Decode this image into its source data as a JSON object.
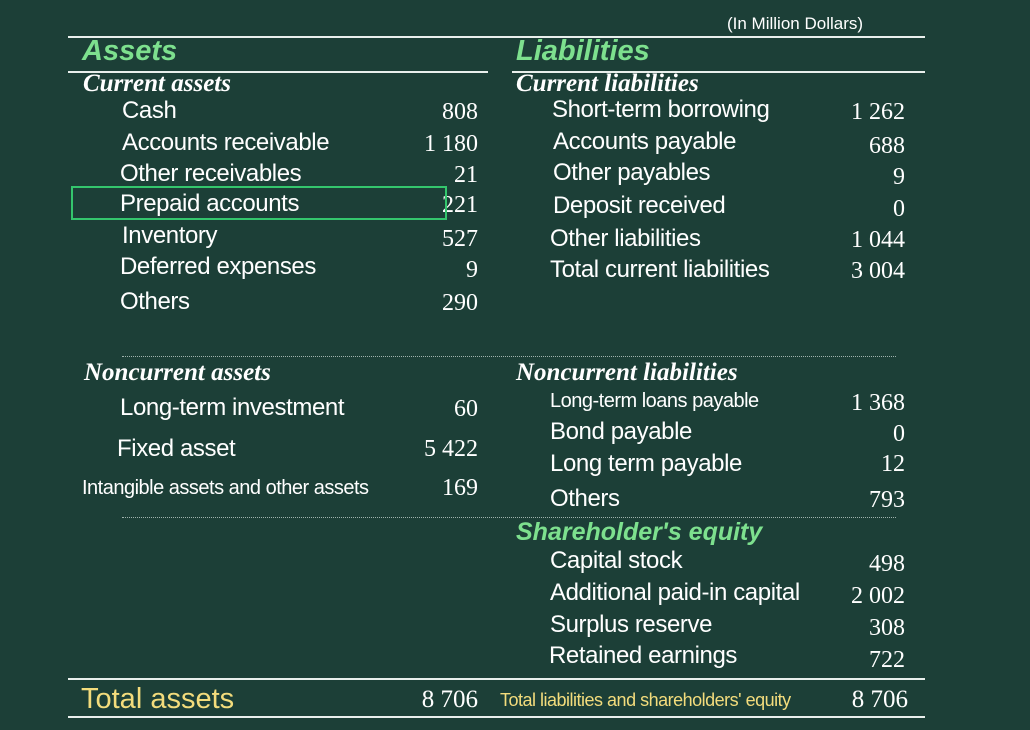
{
  "note": "(In Million Dollars)",
  "assets": {
    "title": "Assets",
    "current": {
      "title": "Current assets",
      "items": [
        {
          "label": "Cash",
          "value": "808"
        },
        {
          "label": "Accounts receivable",
          "value": "1 180"
        },
        {
          "label": "Other receivables",
          "value": "21"
        },
        {
          "label": "Prepaid accounts",
          "value": "221"
        },
        {
          "label": "Inventory",
          "value": "527"
        },
        {
          "label": "Deferred expenses",
          "value": "9"
        },
        {
          "label": "Others",
          "value": "290"
        }
      ]
    },
    "noncurrent": {
      "title": "Noncurrent assets",
      "items": [
        {
          "label": "Long-term investment",
          "value": "60"
        },
        {
          "label": "Fixed asset",
          "value": "5 422"
        },
        {
          "label": "Intangible assets and other assets",
          "value": "169"
        }
      ]
    },
    "total_label": "Total assets",
    "total_value": "8 706"
  },
  "liabilities": {
    "title": "Liabilities",
    "current": {
      "title": "Current liabilities",
      "items": [
        {
          "label": "Short-term borrowing",
          "value": "1 262"
        },
        {
          "label": "Accounts payable",
          "value": "688"
        },
        {
          "label": "Other payables",
          "value": "9"
        },
        {
          "label": "Deposit received",
          "value": "0"
        },
        {
          "label": "Other liabilities",
          "value": "1 044"
        },
        {
          "label": "Total current liabilities",
          "value": "3 004"
        }
      ]
    },
    "noncurrent": {
      "title": "Noncurrent liabilities",
      "items": [
        {
          "label": "Long-term loans payable",
          "value": "1 368"
        },
        {
          "label": "Bond payable",
          "value": "0"
        },
        {
          "label": "Long term payable",
          "value": "12"
        },
        {
          "label": "Others",
          "value": "793"
        }
      ]
    },
    "equity": {
      "title": "Shareholder's equity",
      "items": [
        {
          "label": "Capital stock",
          "value": "498"
        },
        {
          "label": "Additional paid-in capital",
          "value": "2 002"
        },
        {
          "label": "Surplus reserve",
          "value": "308"
        },
        {
          "label": "Retained earnings",
          "value": "722"
        }
      ]
    },
    "total_label": "Total liabilities and shareholders' equity",
    "total_value": "8 706"
  },
  "colors": {
    "background": "#1c3f37",
    "heading": "#7de08e",
    "total": "#f3dc7c",
    "highlight": "#34c66d"
  }
}
